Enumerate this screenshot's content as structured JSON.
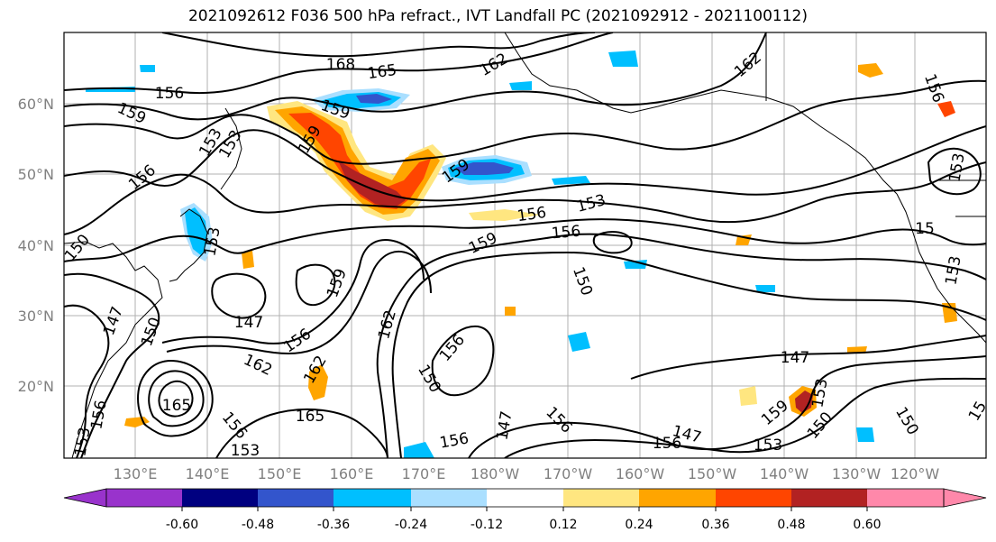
{
  "figure": {
    "title": "2021092612 F036 500 hPa refract., IVT Landfall PC (2021092912 - 2021100112)"
  },
  "map": {
    "lat_labels": [
      "60°N",
      "50°N",
      "40°N",
      "30°N",
      "20°N"
    ],
    "lon_labels": [
      "130°E",
      "140°E",
      "150°E",
      "160°E",
      "170°E",
      "180°W",
      "170°W",
      "160°W",
      "150°W",
      "140°W",
      "130°W",
      "120°W"
    ],
    "label_color": "#808080",
    "contour_labels": [
      {
        "text": "168"
      },
      {
        "text": "165"
      },
      {
        "text": "162"
      },
      {
        "text": "162"
      },
      {
        "text": "156"
      },
      {
        "text": "159"
      },
      {
        "text": "159"
      },
      {
        "text": "153"
      },
      {
        "text": "156"
      },
      {
        "text": "159"
      },
      {
        "text": "159"
      },
      {
        "text": "156"
      },
      {
        "text": "153"
      },
      {
        "text": "156"
      },
      {
        "text": "159"
      },
      {
        "text": "150"
      },
      {
        "text": "159"
      },
      {
        "text": "150"
      },
      {
        "text": "147"
      },
      {
        "text": "150"
      },
      {
        "text": "147"
      },
      {
        "text": "156"
      },
      {
        "text": "162"
      },
      {
        "text": "162"
      },
      {
        "text": "162"
      },
      {
        "text": "150"
      },
      {
        "text": "156"
      },
      {
        "text": "147"
      },
      {
        "text": "165"
      },
      {
        "text": "165"
      },
      {
        "text": "153"
      },
      {
        "text": "156"
      },
      {
        "text": "147"
      },
      {
        "text": "156"
      },
      {
        "text": "156"
      },
      {
        "text": "147"
      },
      {
        "text": "153"
      },
      {
        "text": "156"
      },
      {
        "text": "153"
      },
      {
        "text": "159"
      },
      {
        "text": "150"
      },
      {
        "text": "15"
      },
      {
        "text": "153"
      },
      {
        "text": "156"
      },
      {
        "text": "153"
      },
      {
        "text": "15"
      },
      {
        "text": "153"
      },
      {
        "text": "150"
      },
      {
        "text": "156"
      },
      {
        "text": "153"
      },
      {
        "text": "153"
      }
    ]
  },
  "colorbar": {
    "tick_labels": [
      "-0.60",
      "-0.48",
      "-0.36",
      "-0.24",
      "-0.12",
      "0.12",
      "0.24",
      "0.36",
      "0.48",
      "0.60"
    ],
    "colors": [
      "#9933cc",
      "#000080",
      "#3355cc",
      "#00bfff",
      "#aadfff",
      "#ffffff",
      "#ffe680",
      "#ffa500",
      "#ff4500",
      "#b22222",
      "#ff88aa"
    ]
  }
}
